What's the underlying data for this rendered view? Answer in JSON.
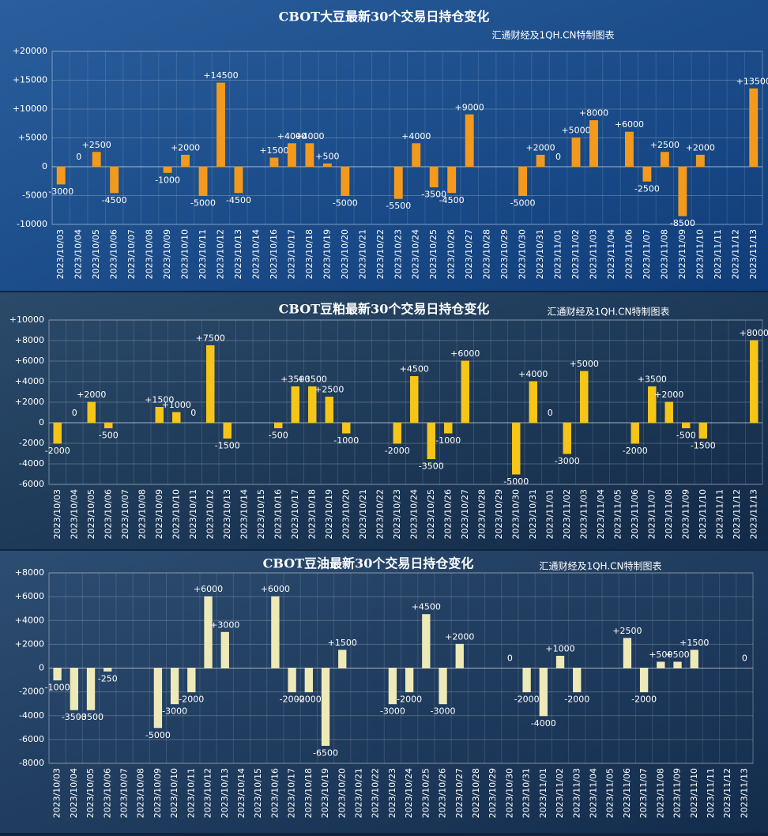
{
  "chart_data": [
    {
      "type": "bar",
      "title": "CBOT大豆最新30个交易日持仓变化",
      "subtitle": "汇通财经及1QH.CN特制图表",
      "categories": [
        "2023/10/03",
        "2023/10/04",
        "2023/10/05",
        "2023/10/06",
        "2023/10/07",
        "2023/10/08",
        "2023/10/09",
        "2023/10/10",
        "2023/10/11",
        "2023/10/12",
        "2023/10/13",
        "2023/10/14",
        "2023/10/16",
        "2023/10/17",
        "2023/10/18",
        "2023/10/19",
        "2023/10/20",
        "2023/10/21",
        "2023/10/22",
        "2023/10/23",
        "2023/10/24",
        "2023/10/25",
        "2023/10/26",
        "2023/10/27",
        "2023/10/28",
        "2023/10/29",
        "2023/10/30",
        "2023/10/31",
        "2023/11/01",
        "2023/11/02",
        "2023/11/03",
        "2023/11/04",
        "2023/11/06",
        "2023/11/07",
        "2023/11/08",
        "2023/11/09",
        "2023/11/10",
        "2023/11/11",
        "2023/11/12",
        "2023/11/13"
      ],
      "values": [
        -3000,
        0,
        2500,
        -4500,
        null,
        null,
        -1000,
        2000,
        -5000,
        14500,
        -4500,
        null,
        1500,
        4000,
        4000,
        500,
        -5000,
        null,
        null,
        -5500,
        4000,
        -3500,
        -4500,
        9000,
        null,
        null,
        -5000,
        2000,
        0,
        5000,
        8000,
        null,
        6000,
        -2500,
        2500,
        -8500,
        2000,
        null,
        null,
        13500
      ],
      "value_labels": [
        "-3000",
        "0",
        "+2500",
        "-4500",
        null,
        null,
        "-1000",
        "+2000",
        "-5000",
        "+14500",
        "-4500",
        null,
        "+1500",
        "+4000",
        "+4000",
        "+500",
        "-5000",
        null,
        null,
        "-5500",
        "+4000",
        "-3500",
        "-4500",
        "+9000",
        null,
        null,
        "-5000",
        "+2000",
        "0",
        "+5000",
        "+8000",
        null,
        "+6000",
        "-2500",
        "+2500",
        "-8500",
        "+2000",
        null,
        null,
        "+13500"
      ],
      "color": "#f39a1c",
      "ylim": [
        -10000,
        20000
      ],
      "yticks": [
        -10000,
        -5000,
        0,
        {
          "value": 5000,
          "label": "+5000"
        },
        {
          "value": 10000,
          "label": "+10000"
        },
        {
          "value": 15000,
          "label": "+15000"
        },
        {
          "value": 20000,
          "label": "+20000"
        }
      ],
      "grid": true
    },
    {
      "type": "bar",
      "title": "CBOT豆粕最新30个交易日持仓变化",
      "subtitle": "汇通财经及1QH.CN特制图表",
      "categories": [
        "2023/10/03",
        "2023/10/04",
        "2023/10/05",
        "2023/10/06",
        "2023/10/07",
        "2023/10/08",
        "2023/10/09",
        "2023/10/10",
        "2023/10/11",
        "2023/10/12",
        "2023/10/13",
        "2023/10/14",
        "2023/10/15",
        "2023/10/16",
        "2023/10/17",
        "2023/10/18",
        "2023/10/19",
        "2023/10/20",
        "2023/10/21",
        "2023/10/22",
        "2023/10/23",
        "2023/10/24",
        "2023/10/25",
        "2023/10/26",
        "2023/10/27",
        "2023/10/28",
        "2023/10/29",
        "2023/10/30",
        "2023/10/31",
        "2023/11/01",
        "2023/11/02",
        "2023/11/03",
        "2023/11/04",
        "2023/11/05",
        "2023/11/06",
        "2023/11/07",
        "2023/11/08",
        "2023/11/09",
        "2023/11/10",
        "2023/11/11",
        "2023/11/12",
        "2023/11/13"
      ],
      "values": [
        -2000,
        0,
        2000,
        -500,
        null,
        null,
        1500,
        1000,
        0,
        7500,
        -1500,
        null,
        null,
        -500,
        3500,
        3500,
        2500,
        -1000,
        null,
        null,
        -2000,
        4500,
        -3500,
        -1000,
        6000,
        null,
        null,
        -5000,
        4000,
        0,
        -3000,
        5000,
        null,
        null,
        -2000,
        3500,
        2000,
        -500,
        -1500,
        null,
        null,
        8000
      ],
      "value_labels": [
        "-2000",
        "0",
        "+2000",
        "-500",
        null,
        null,
        "+1500",
        "+1000",
        "0",
        "+7500",
        "-1500",
        null,
        null,
        "-500",
        "+3500",
        "+3500",
        "+2500",
        "-1000",
        null,
        null,
        "-2000",
        "+4500",
        "-3500",
        "-1000",
        "+6000",
        null,
        null,
        "-5000",
        "+4000",
        "0",
        "-3000",
        "+5000",
        null,
        null,
        "-2000",
        "+3500",
        "+2000",
        "-500",
        "-1500",
        null,
        null,
        "+8000"
      ],
      "color": "#f5c518",
      "ylim": [
        -6000,
        10000
      ],
      "yticks": [
        -6000,
        -4000,
        -2000,
        0,
        {
          "value": 2000,
          "label": "+2000"
        },
        {
          "value": 4000,
          "label": "+4000"
        },
        {
          "value": 6000,
          "label": "+6000"
        },
        {
          "value": 8000,
          "label": "+8000"
        },
        {
          "value": 10000,
          "label": "+10000"
        }
      ],
      "grid": true
    },
    {
      "type": "bar",
      "title": "CBOT豆油最新30个交易日持仓变化",
      "subtitle": "汇通财经及1QH.CN特制图表",
      "categories": [
        "2023/10/03",
        "2023/10/04",
        "2023/10/05",
        "2023/10/06",
        "2023/10/07",
        "2023/10/08",
        "2023/10/09",
        "2023/10/10",
        "2023/10/11",
        "2023/10/12",
        "2023/10/13",
        "2023/10/14",
        "2023/10/15",
        "2023/10/16",
        "2023/10/17",
        "2023/10/18",
        "2023/10/19",
        "2023/10/20",
        "2023/10/21",
        "2023/10/22",
        "2023/10/23",
        "2023/10/24",
        "2023/10/25",
        "2023/10/26",
        "2023/10/27",
        "2023/10/28",
        "2023/10/29",
        "2023/10/30",
        "2023/10/31",
        "2023/11/01",
        "2023/11/02",
        "2023/11/03",
        "2023/11/04",
        "2023/11/05",
        "2023/11/06",
        "2023/11/07",
        "2023/11/08",
        "2023/11/09",
        "2023/11/10",
        "2023/11/11",
        "2023/11/12",
        "2023/11/13"
      ],
      "values": [
        -1000,
        -3500,
        -3500,
        -250,
        null,
        null,
        -5000,
        -3000,
        -2000,
        6000,
        3000,
        null,
        null,
        6000,
        -2000,
        -2000,
        -6500,
        1500,
        null,
        null,
        -3000,
        -2000,
        4500,
        -3000,
        2000,
        null,
        null,
        0,
        -2000,
        -4000,
        1000,
        -2000,
        null,
        null,
        2500,
        -2000,
        500,
        500,
        1500,
        null,
        null,
        0
      ],
      "value_labels": [
        "-1000",
        "-3500",
        "-3500",
        "-250",
        null,
        null,
        "-5000",
        "-3000",
        "-2000",
        "+6000",
        "+3000",
        null,
        null,
        "+6000",
        "-2000",
        "-2000",
        "-6500",
        "+1500",
        null,
        null,
        "-3000",
        "-2000",
        "+4500",
        "-3000",
        "+2000",
        null,
        null,
        "0",
        "-2000",
        "-4000",
        "+1000",
        "-2000",
        null,
        null,
        "+2500",
        "-2000",
        "+500",
        "+500",
        "+1500",
        null,
        null,
        "0"
      ],
      "color": "#eeeab8",
      "ylim": [
        -8000,
        8000
      ],
      "yticks": [
        -8000,
        -6000,
        -4000,
        -2000,
        0,
        {
          "value": 2000,
          "label": "+2000"
        },
        {
          "value": 4000,
          "label": "+4000"
        },
        {
          "value": 6000,
          "label": "+6000"
        },
        {
          "value": 8000,
          "label": "+8000"
        }
      ],
      "grid": true
    }
  ]
}
